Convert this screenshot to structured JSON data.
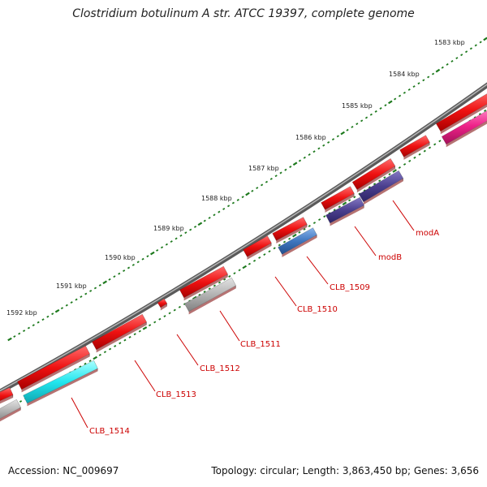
{
  "title": "Clostridium botulinum A str. ATCC 19397, complete genome",
  "footer": {
    "accession": "Accession: NC_009697",
    "summary": "Topology: circular; Length: 3,863,450 bp; Genes: 3,656"
  },
  "scale": {
    "unit": "kbp",
    "labels": [
      "1583 kbp",
      "1584 kbp",
      "1585 kbp",
      "1586 kbp",
      "1587 kbp",
      "1588 kbp",
      "1589 kbp",
      "1590 kbp",
      "1591 kbp",
      "1592 kbp"
    ]
  },
  "gene_labels": [
    "modA",
    "modB",
    "CLB_1509",
    "CLB_1510",
    "CLB_1511",
    "CLB_1512",
    "CLB_1513",
    "CLB_1514"
  ],
  "colors": {
    "forward_gene": "#ee1111",
    "reverse_gene_generic": "#b3b3b3",
    "modA": "#4b3f8e",
    "modB": "#4b3f8e",
    "CLB_1509": "#3f76bf",
    "CLB_1514": "#22e6ee",
    "right_edge_gene": "#ee2288",
    "backbone": "#7a7a7a",
    "tick": "#1e7a1e",
    "label": "#cc0000"
  }
}
